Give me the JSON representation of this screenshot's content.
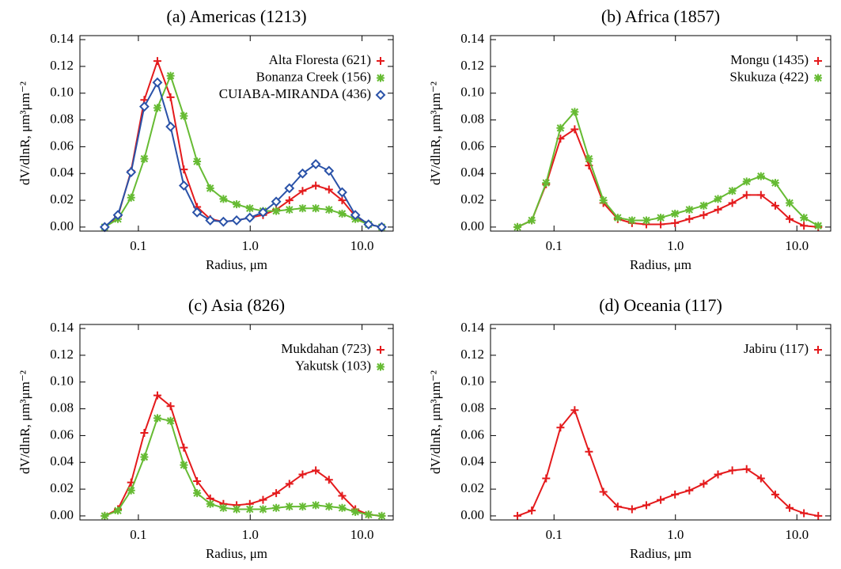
{
  "chart_data": [
    {
      "type": "line",
      "title": "(a) Americas (1213)",
      "xlabel": "Radius, μm",
      "ylabel": "dV/dlnR, μm³μm⁻²",
      "xscale": "log",
      "x": [
        0.05,
        0.0656,
        0.0861,
        0.113,
        0.148,
        0.194,
        0.255,
        0.335,
        0.439,
        0.576,
        0.756,
        0.992,
        1.302,
        1.708,
        2.241,
        2.94,
        3.858,
        5.061,
        6.641,
        8.713,
        11.432,
        15.0
      ],
      "xlim": [
        0.03,
        19
      ],
      "xticks": [
        0.1,
        {
          "value": 1,
          "label": "1.0"
        },
        {
          "value": 10,
          "label": "10.0"
        }
      ],
      "ylim": [
        -0.003,
        0.143
      ],
      "yticks": [
        {
          "value": 0,
          "label": "0.00"
        },
        {
          "value": 0.02,
          "label": "0.02"
        },
        {
          "value": 0.04,
          "label": "0.04"
        },
        {
          "value": 0.06,
          "label": "0.06"
        },
        {
          "value": 0.08,
          "label": "0.08"
        },
        {
          "value": 0.1,
          "label": "0.10"
        },
        {
          "value": 0.12,
          "label": "0.12"
        },
        {
          "value": 0.14,
          "label": "0.14"
        }
      ],
      "series": [
        {
          "name": "Alta Floresta (621)",
          "color": "#e41a1c",
          "marker": "plus",
          "values": [
            0,
            0.008,
            0.042,
            0.095,
            0.124,
            0.097,
            0.043,
            0.015,
            0.006,
            0.004,
            0.005,
            0.007,
            0.009,
            0.013,
            0.02,
            0.027,
            0.031,
            0.028,
            0.02,
            0.008,
            0.002,
            0
          ]
        },
        {
          "name": "Bonanza Creek (156)",
          "color": "#66bb33",
          "marker": "star",
          "values": [
            0,
            0.006,
            0.022,
            0.051,
            0.089,
            0.113,
            0.083,
            0.049,
            0.029,
            0.021,
            0.017,
            0.014,
            0.012,
            0.012,
            0.013,
            0.014,
            0.014,
            0.013,
            0.01,
            0.006,
            0.002,
            0
          ]
        },
        {
          "name": "CUIABA-MIRANDA (436)",
          "color": "#2a52a8",
          "marker": "diamond",
          "values": [
            0,
            0.009,
            0.041,
            0.09,
            0.108,
            0.075,
            0.031,
            0.011,
            0.005,
            0.004,
            0.005,
            0.007,
            0.011,
            0.019,
            0.029,
            0.04,
            0.047,
            0.042,
            0.026,
            0.009,
            0.002,
            0
          ]
        }
      ]
    },
    {
      "type": "line",
      "title": "(b) Africa (1857)",
      "xlabel": "Radius, μm",
      "ylabel": "dV/dlnR, μm³μm⁻²",
      "xscale": "log",
      "x": [
        0.05,
        0.0656,
        0.0861,
        0.113,
        0.148,
        0.194,
        0.255,
        0.335,
        0.439,
        0.576,
        0.756,
        0.992,
        1.302,
        1.708,
        2.241,
        2.94,
        3.858,
        5.061,
        6.641,
        8.713,
        11.432,
        15.0
      ],
      "xlim": [
        0.03,
        19
      ],
      "xticks": [
        0.1,
        {
          "value": 1,
          "label": "1.0"
        },
        {
          "value": 10,
          "label": "10.0"
        }
      ],
      "ylim": [
        -0.003,
        0.143
      ],
      "yticks": [
        {
          "value": 0,
          "label": "0.00"
        },
        {
          "value": 0.02,
          "label": "0.02"
        },
        {
          "value": 0.04,
          "label": "0.04"
        },
        {
          "value": 0.06,
          "label": "0.06"
        },
        {
          "value": 0.08,
          "label": "0.08"
        },
        {
          "value": 0.1,
          "label": "0.10"
        },
        {
          "value": 0.12,
          "label": "0.12"
        },
        {
          "value": 0.14,
          "label": "0.14"
        }
      ],
      "series": [
        {
          "name": "Mongu (1435)",
          "color": "#e41a1c",
          "marker": "plus",
          "values": [
            0,
            0.005,
            0.032,
            0.066,
            0.073,
            0.046,
            0.018,
            0.006,
            0.003,
            0.002,
            0.002,
            0.003,
            0.006,
            0.009,
            0.013,
            0.018,
            0.024,
            0.024,
            0.016,
            0.006,
            0.001,
            0
          ]
        },
        {
          "name": "Skukuza (422)",
          "color": "#66bb33",
          "marker": "star",
          "values": [
            0,
            0.005,
            0.033,
            0.074,
            0.086,
            0.051,
            0.02,
            0.007,
            0.005,
            0.005,
            0.007,
            0.01,
            0.013,
            0.016,
            0.021,
            0.027,
            0.034,
            0.038,
            0.033,
            0.018,
            0.007,
            0.001
          ]
        }
      ]
    },
    {
      "type": "line",
      "title": "(c) Asia (826)",
      "xlabel": "Radius, μm",
      "ylabel": "dV/dlnR, μm³μm⁻²",
      "xscale": "log",
      "x": [
        0.05,
        0.0656,
        0.0861,
        0.113,
        0.148,
        0.194,
        0.255,
        0.335,
        0.439,
        0.576,
        0.756,
        0.992,
        1.302,
        1.708,
        2.241,
        2.94,
        3.858,
        5.061,
        6.641,
        8.713,
        11.432,
        15.0
      ],
      "xlim": [
        0.03,
        19
      ],
      "xticks": [
        0.1,
        {
          "value": 1,
          "label": "1.0"
        },
        {
          "value": 10,
          "label": "10.0"
        }
      ],
      "ylim": [
        -0.003,
        0.143
      ],
      "yticks": [
        {
          "value": 0,
          "label": "0.00"
        },
        {
          "value": 0.02,
          "label": "0.02"
        },
        {
          "value": 0.04,
          "label": "0.04"
        },
        {
          "value": 0.06,
          "label": "0.06"
        },
        {
          "value": 0.08,
          "label": "0.08"
        },
        {
          "value": 0.1,
          "label": "0.10"
        },
        {
          "value": 0.12,
          "label": "0.12"
        },
        {
          "value": 0.14,
          "label": "0.14"
        }
      ],
      "series": [
        {
          "name": "Mukdahan (723)",
          "color": "#e41a1c",
          "marker": "plus",
          "values": [
            0,
            0.005,
            0.025,
            0.062,
            0.09,
            0.082,
            0.051,
            0.026,
            0.013,
            0.009,
            0.008,
            0.009,
            0.012,
            0.017,
            0.024,
            0.031,
            0.034,
            0.027,
            0.015,
            0.005,
            0.001,
            0
          ]
        },
        {
          "name": "Yakutsk (103)",
          "color": "#66bb33",
          "marker": "star",
          "values": [
            0,
            0.004,
            0.019,
            0.044,
            0.073,
            0.071,
            0.038,
            0.017,
            0.009,
            0.006,
            0.005,
            0.005,
            0.005,
            0.006,
            0.007,
            0.007,
            0.008,
            0.007,
            0.006,
            0.003,
            0.001,
            0
          ]
        }
      ]
    },
    {
      "type": "line",
      "title": "(d) Oceania (117)",
      "xlabel": "Radius, μm",
      "ylabel": "dV/dlnR, μm³μm⁻²",
      "xscale": "log",
      "x": [
        0.05,
        0.0656,
        0.0861,
        0.113,
        0.148,
        0.194,
        0.255,
        0.335,
        0.439,
        0.576,
        0.756,
        0.992,
        1.302,
        1.708,
        2.241,
        2.94,
        3.858,
        5.061,
        6.641,
        8.713,
        11.432,
        15.0
      ],
      "xlim": [
        0.03,
        19
      ],
      "xticks": [
        0.1,
        {
          "value": 1,
          "label": "1.0"
        },
        {
          "value": 10,
          "label": "10.0"
        }
      ],
      "ylim": [
        -0.003,
        0.143
      ],
      "yticks": [
        {
          "value": 0,
          "label": "0.00"
        },
        {
          "value": 0.02,
          "label": "0.02"
        },
        {
          "value": 0.04,
          "label": "0.04"
        },
        {
          "value": 0.06,
          "label": "0.06"
        },
        {
          "value": 0.08,
          "label": "0.08"
        },
        {
          "value": 0.1,
          "label": "0.10"
        },
        {
          "value": 0.12,
          "label": "0.12"
        },
        {
          "value": 0.14,
          "label": "0.14"
        }
      ],
      "series": [
        {
          "name": "Jabiru (117)",
          "color": "#e41a1c",
          "marker": "plus",
          "values": [
            0,
            0.004,
            0.028,
            0.066,
            0.079,
            0.048,
            0.018,
            0.007,
            0.005,
            0.008,
            0.012,
            0.016,
            0.019,
            0.024,
            0.031,
            0.034,
            0.035,
            0.028,
            0.016,
            0.006,
            0.002,
            0
          ]
        }
      ]
    }
  ]
}
